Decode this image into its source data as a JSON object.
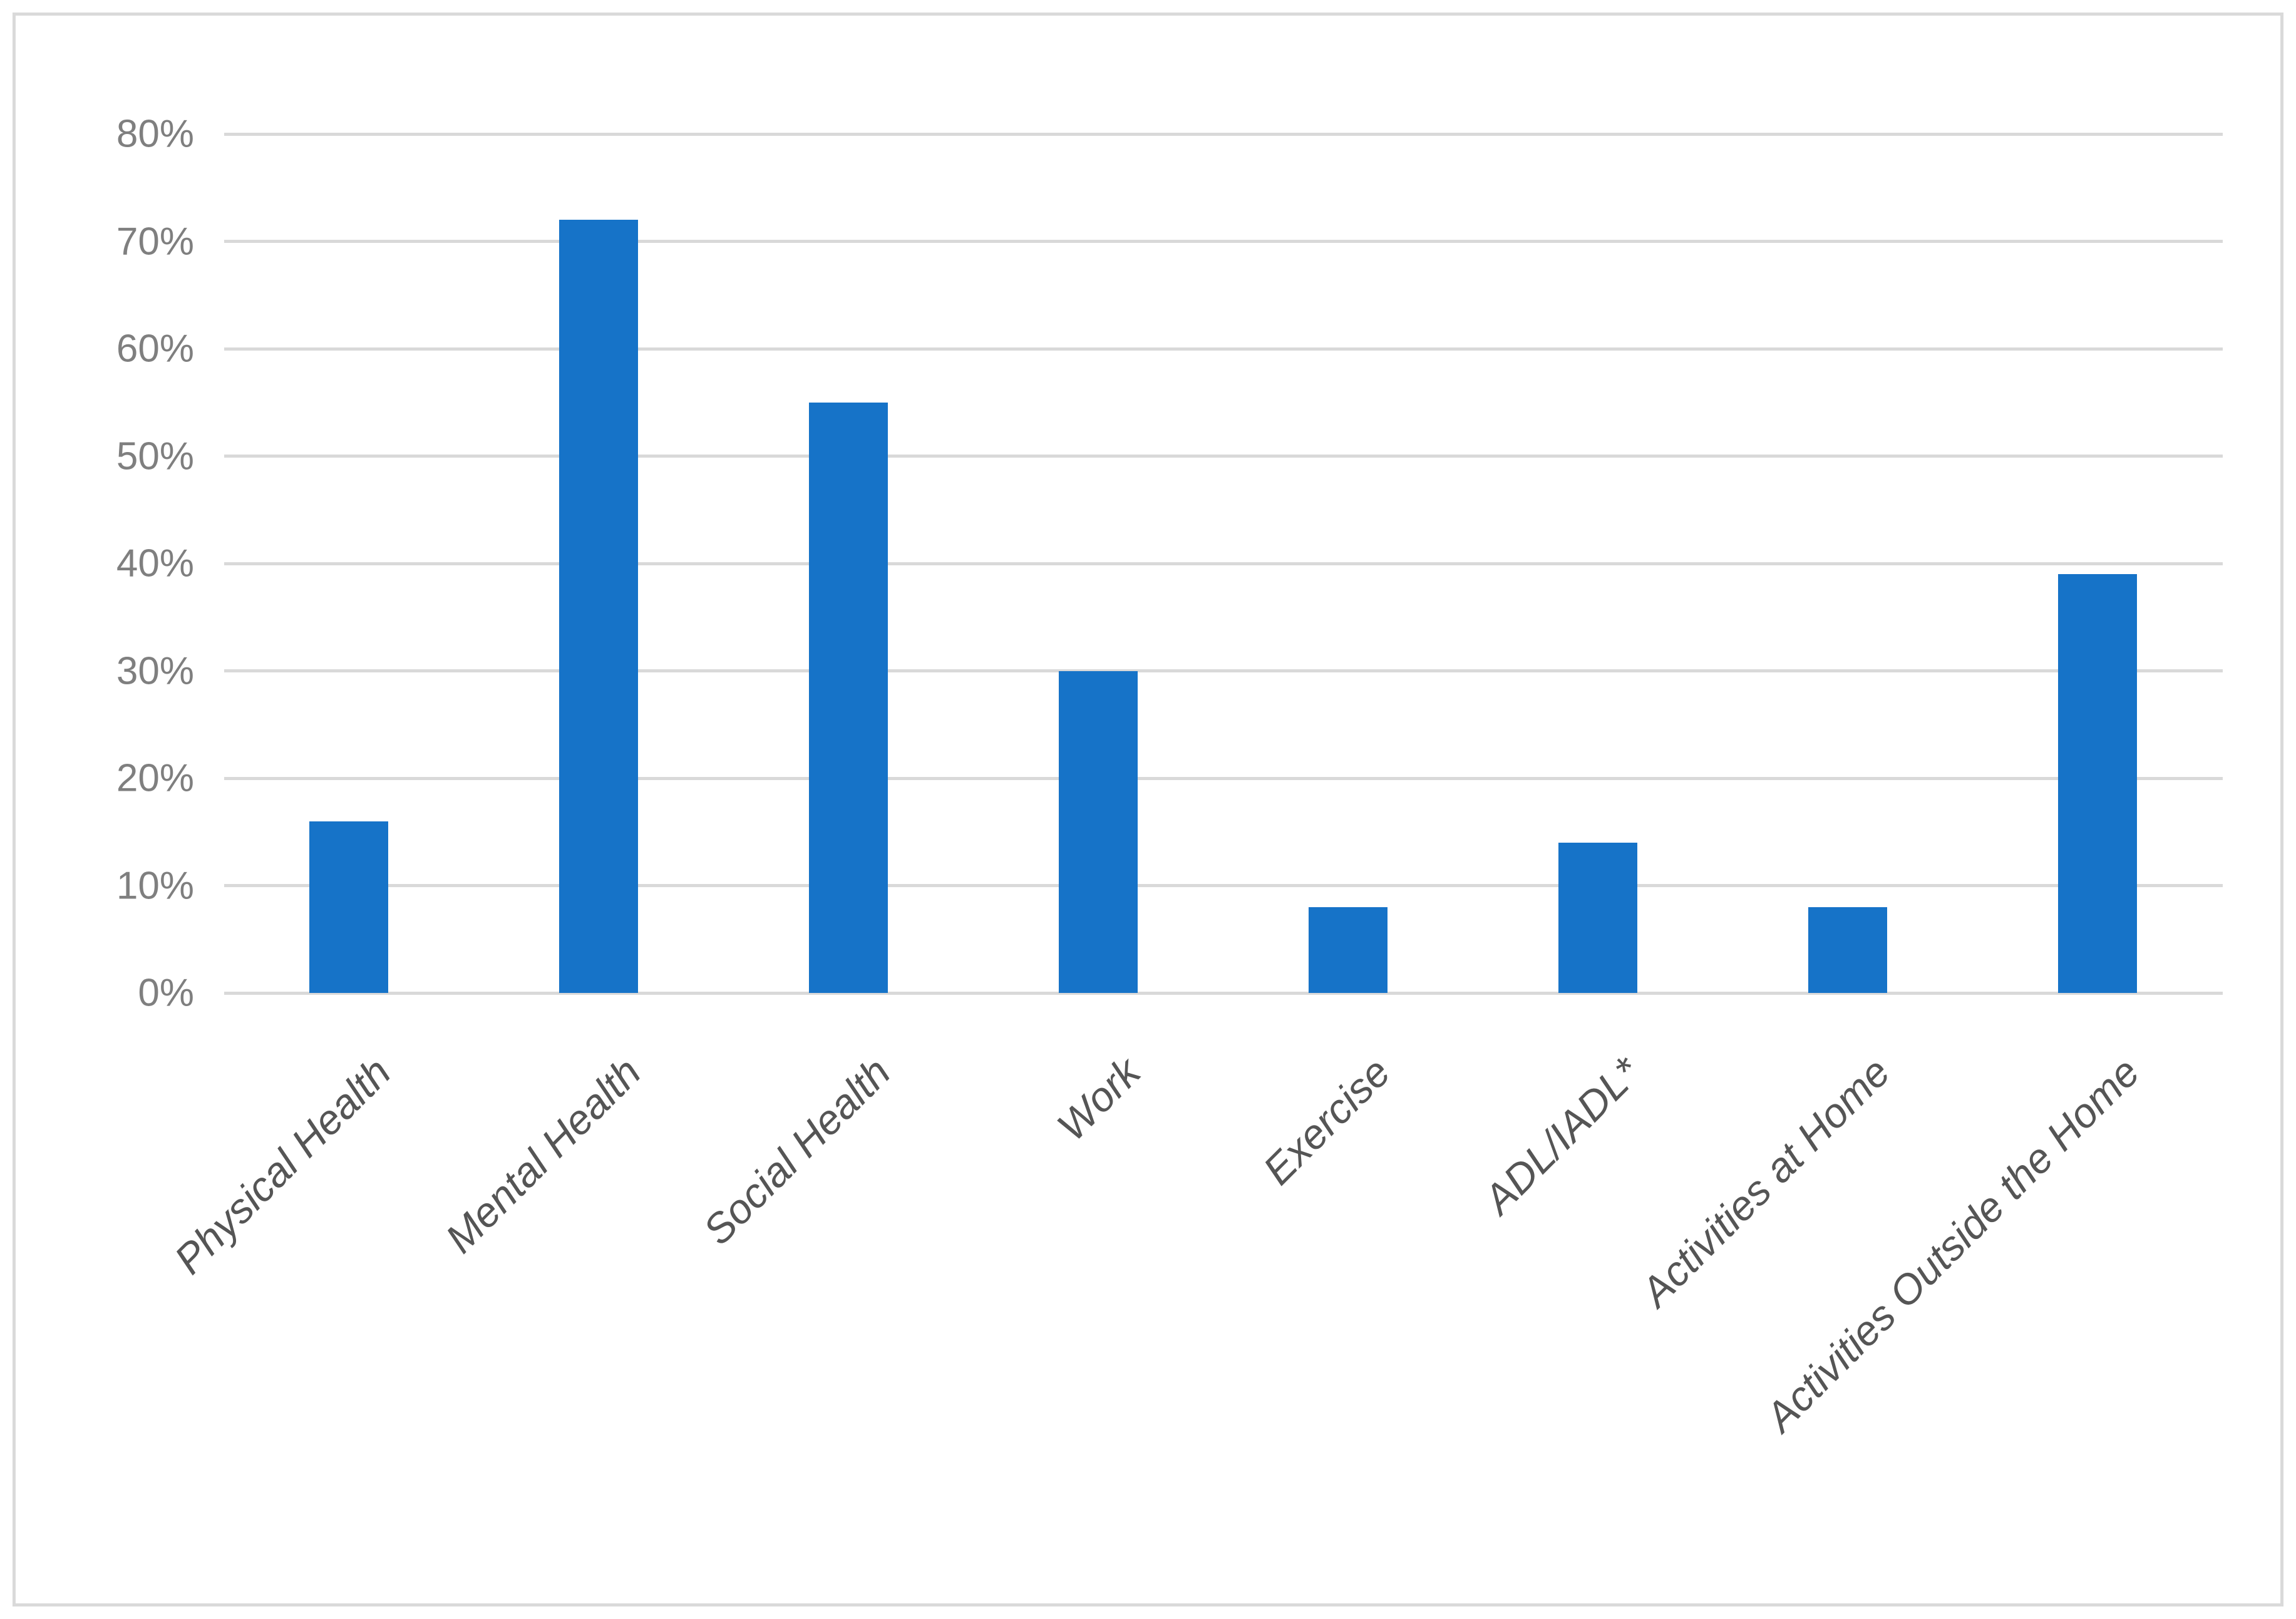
{
  "chart_data": {
    "type": "bar",
    "title": "",
    "xlabel": "",
    "ylabel": "",
    "categories": [
      "Physical Health",
      "Mental Health",
      "Social Health",
      "Work",
      "Exercise",
      "ADL/IADL*",
      "Activities at Home",
      "Activities Outside the Home"
    ],
    "values": [
      16,
      72,
      55,
      30,
      8,
      14,
      8,
      39
    ],
    "value_unit": "%",
    "ylim": [
      0,
      80
    ],
    "ytick_step": 10,
    "ytick_labels": [
      "0%",
      "10%",
      "20%",
      "30%",
      "40%",
      "50%",
      "60%",
      "70%",
      "80%"
    ],
    "grid": true,
    "legend": "none",
    "bar_color": "#1673c8",
    "gridline_color": "#d9d9d9",
    "frame_border_color": "#dadada",
    "ytick_label_color": "#7f7f7f",
    "category_label_color": "#555555",
    "category_label_rotation_deg": 45
  }
}
